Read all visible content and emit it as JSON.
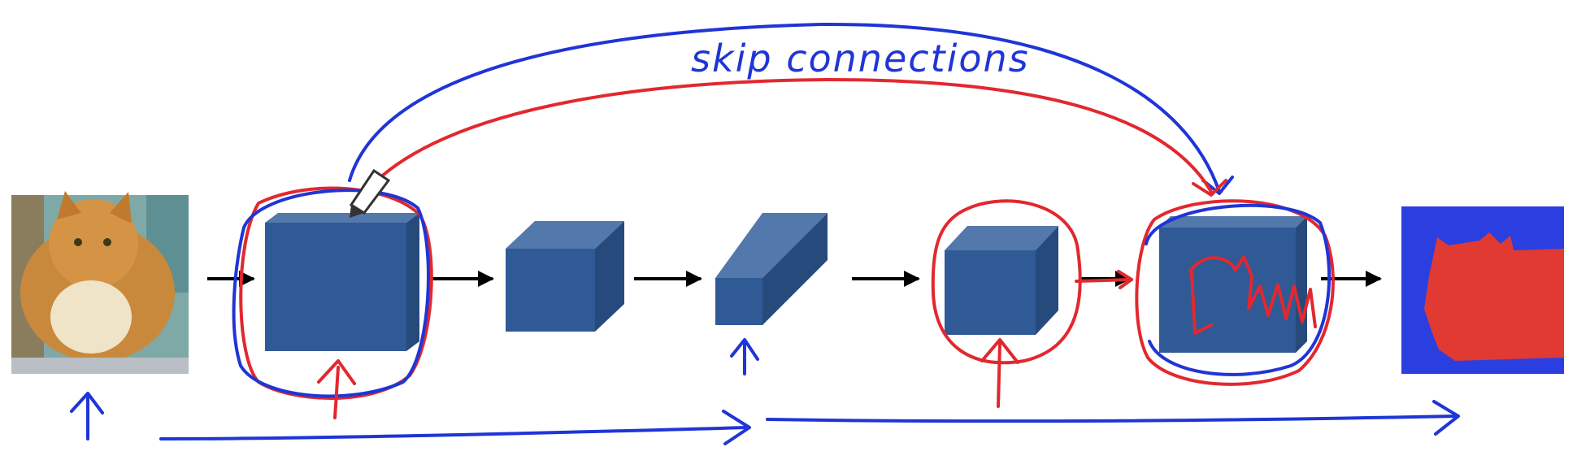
{
  "annotation": {
    "text": "skip connections"
  },
  "colors": {
    "block_front": "#2f5a96",
    "block_top": "#5378ab",
    "block_side": "#264a7c",
    "ink_blue": "#1f35d6",
    "ink_red": "#e2282f",
    "mask_background": "#2b3fe0",
    "mask_foreground": "#e03a33"
  },
  "icons": [
    "pencil-cursor-icon",
    "up-arrow-icon",
    "right-arrow-icon"
  ]
}
